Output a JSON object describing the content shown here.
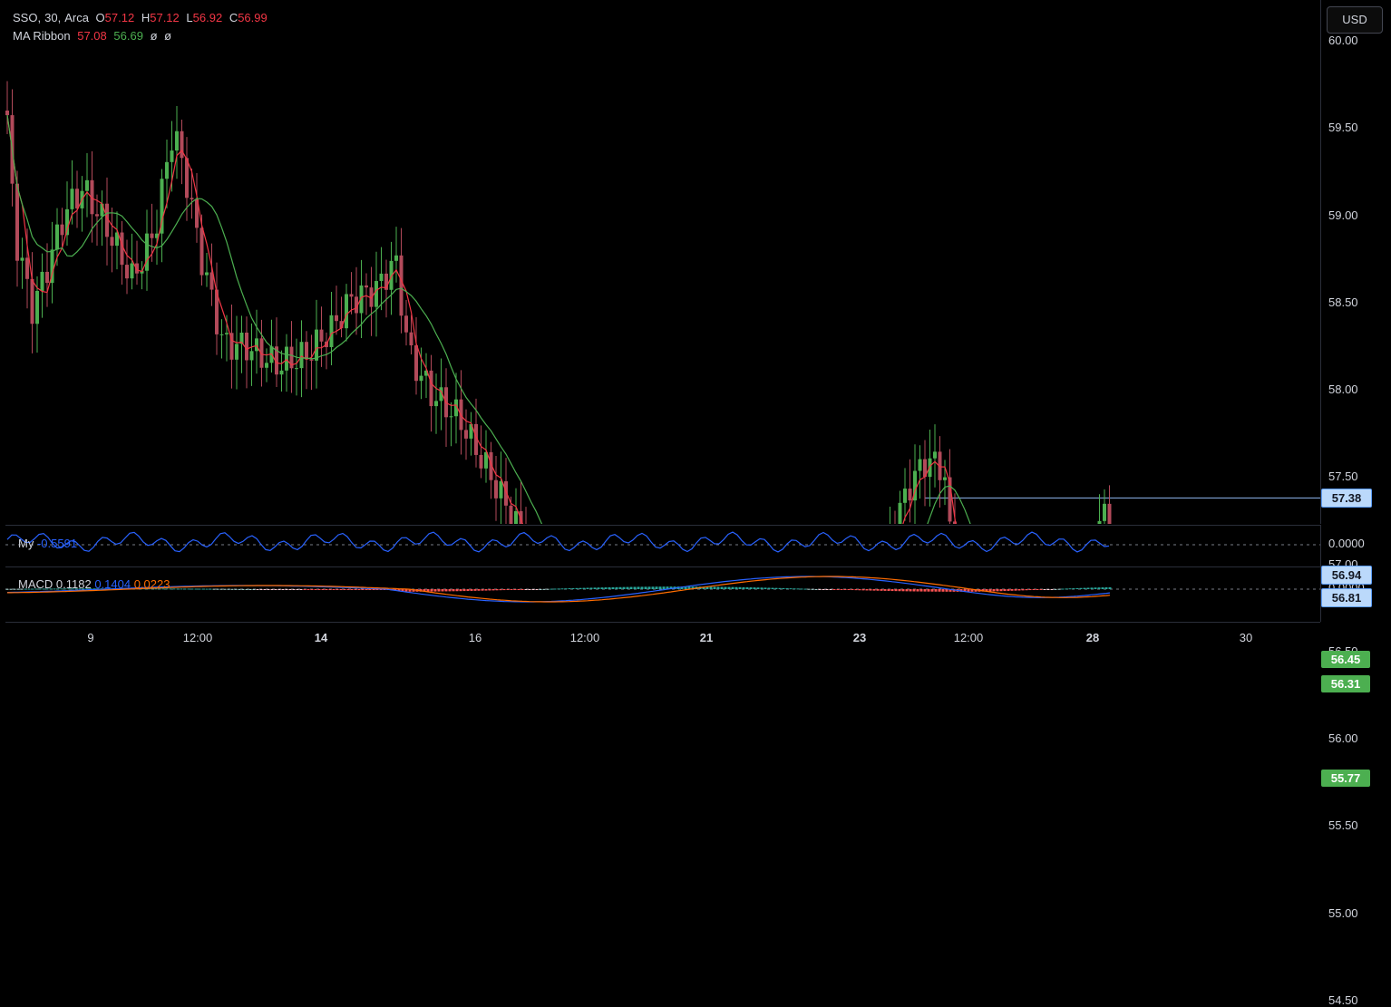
{
  "header": {
    "symbol": "SSO",
    "interval": "30",
    "exchange": "Arca",
    "o_label": "O",
    "o_value": "57.12",
    "h_label": "H",
    "h_value": "57.12",
    "l_label": "L",
    "l_value": "56.92",
    "c_label": "C",
    "c_value": "56.99"
  },
  "ma_ribbon": {
    "label": "MA Ribbon",
    "value1": "57.08",
    "value2": "56.69",
    "empty1": "ø",
    "empty2": "ø",
    "color1": "#f23645",
    "color2": "#4caf50"
  },
  "currency_button": "USD",
  "price_axis": [
    "60.00",
    "59.50",
    "59.00",
    "58.50",
    "58.00",
    "57.50",
    "57.00",
    "56.50",
    "56.00",
    "55.50",
    "55.00",
    "54.50"
  ],
  "price_labels": [
    {
      "value": "57.38",
      "kind": "blue"
    },
    {
      "value": "56.94",
      "kind": "blue"
    },
    {
      "value": "56.81",
      "kind": "blue"
    },
    {
      "value": "56.45",
      "kind": "green"
    },
    {
      "value": "56.31",
      "kind": "green"
    },
    {
      "value": "55.77",
      "kind": "green"
    }
  ],
  "oscillator": {
    "label": "My",
    "value": "-0.5591",
    "axis": "0.0000",
    "color": "#2962ff"
  },
  "macd": {
    "label": "MACD",
    "value": "0.1182",
    "signal": "0.1404",
    "hist": "0.0223",
    "axis": "0.0000",
    "macd_color": "#2962ff",
    "signal_color": "#ff6d00"
  },
  "time_axis": [
    {
      "label": "9",
      "bold": false
    },
    {
      "label": "12:00",
      "bold": false
    },
    {
      "label": "14",
      "bold": true
    },
    {
      "label": "16",
      "bold": false
    },
    {
      "label": "12:00",
      "bold": false
    },
    {
      "label": "21",
      "bold": true
    },
    {
      "label": "23",
      "bold": true
    },
    {
      "label": "12:00",
      "bold": false
    },
    {
      "label": "28",
      "bold": true
    },
    {
      "label": "30",
      "bold": false
    }
  ],
  "colors": {
    "up": "#4caf50",
    "down": "#b24a5a",
    "hline_blue": "#8fb7f0",
    "hline_green": "#80c783"
  }
}
